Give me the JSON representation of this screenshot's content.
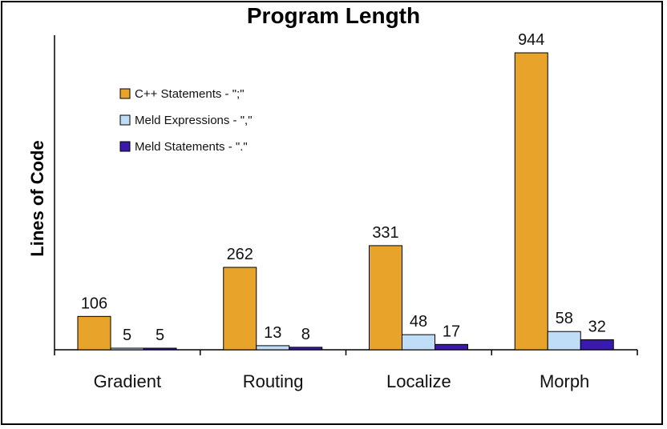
{
  "chart_data": {
    "type": "bar",
    "title": "Program Length",
    "xlabel": "",
    "ylabel": "Lines of Code",
    "categories": [
      "Gradient",
      "Routing",
      "Localize",
      "Morph"
    ],
    "series": [
      {
        "name": "C++ Statements - \";\"",
        "color": "#E8A42A",
        "values": [
          106,
          262,
          331,
          944
        ]
      },
      {
        "name": "Meld Expressions - \",\"",
        "color": "#BFDDF7",
        "values": [
          5,
          13,
          48,
          58
        ]
      },
      {
        "name": "Meld Statements - \".\"",
        "color": "#3A1AAE",
        "values": [
          5,
          8,
          17,
          32
        ]
      }
    ],
    "ylim": [
      0,
      1000
    ],
    "grid": false,
    "legend": "top-left",
    "data_labels": true
  }
}
